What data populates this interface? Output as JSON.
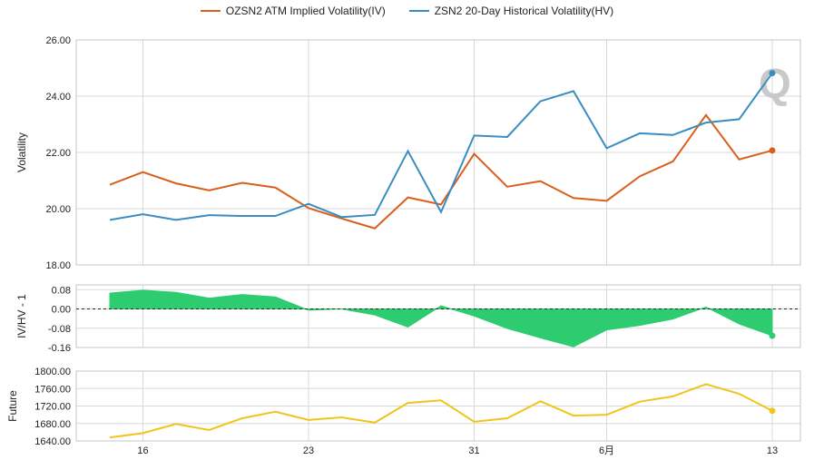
{
  "legend": {
    "iv_label": "OZSN2 ATM Implied Volatility(IV)",
    "hv_label": "ZSN2 20-Day Historical Volatility(HV)"
  },
  "colors": {
    "iv": "#d95f1b",
    "hv": "#3a8cc1",
    "ratio_fill": "#2ecc71",
    "future": "#f0c419",
    "grid": "#d8d8d8"
  },
  "watermark": "Q",
  "chart_data": [
    {
      "type": "line",
      "ylabel": "Volatility",
      "ylim": [
        18,
        26
      ],
      "yticks": [
        "26.00",
        "24.00",
        "22.00",
        "20.00",
        "18.00"
      ],
      "x_ticks": [
        "16",
        "23",
        "31",
        "6月",
        "13"
      ],
      "series": [
        {
          "name": "OZSN2 ATM Implied Volatility(IV)",
          "values": [
            20.85,
            21.3,
            20.9,
            20.65,
            20.92,
            20.75,
            20.02,
            19.65,
            19.3,
            20.4,
            20.15,
            21.95,
            20.78,
            20.98,
            20.38,
            20.28,
            21.15,
            21.68,
            23.33,
            21.75,
            22.07
          ]
        },
        {
          "name": "ZSN2 20-Day Historical Volatility(HV)",
          "values": [
            19.6,
            19.8,
            19.6,
            19.77,
            19.74,
            19.74,
            20.17,
            19.7,
            19.78,
            22.05,
            19.88,
            22.6,
            22.55,
            23.82,
            24.18,
            22.15,
            22.68,
            22.62,
            23.06,
            23.18,
            24.82
          ]
        }
      ]
    },
    {
      "type": "area",
      "ylabel": "IV/HV - 1",
      "ylim": [
        -0.16,
        0.1
      ],
      "yticks": [
        "0.08",
        "0.00",
        "-0.08",
        "-0.16"
      ],
      "series": [
        {
          "values": [
            0.066,
            0.078,
            0.069,
            0.045,
            0.06,
            0.05,
            -0.005,
            0.0,
            -0.025,
            -0.075,
            0.013,
            -0.029,
            -0.081,
            -0.12,
            -0.157,
            -0.087,
            -0.068,
            -0.042,
            0.008,
            -0.062,
            -0.111
          ]
        }
      ]
    },
    {
      "type": "line",
      "ylabel": "Future",
      "ylim": [
        1640,
        1800
      ],
      "yticks": [
        "1800.00",
        "1760.00",
        "1720.00",
        "1680.00",
        "1640.00"
      ],
      "series": [
        {
          "values": [
            1648,
            1658,
            1679,
            1665,
            1692,
            1707,
            1688,
            1694,
            1682,
            1727,
            1733,
            1684,
            1692,
            1731,
            1698,
            1700,
            1730,
            1742,
            1770,
            1748,
            1709
          ]
        }
      ]
    }
  ]
}
